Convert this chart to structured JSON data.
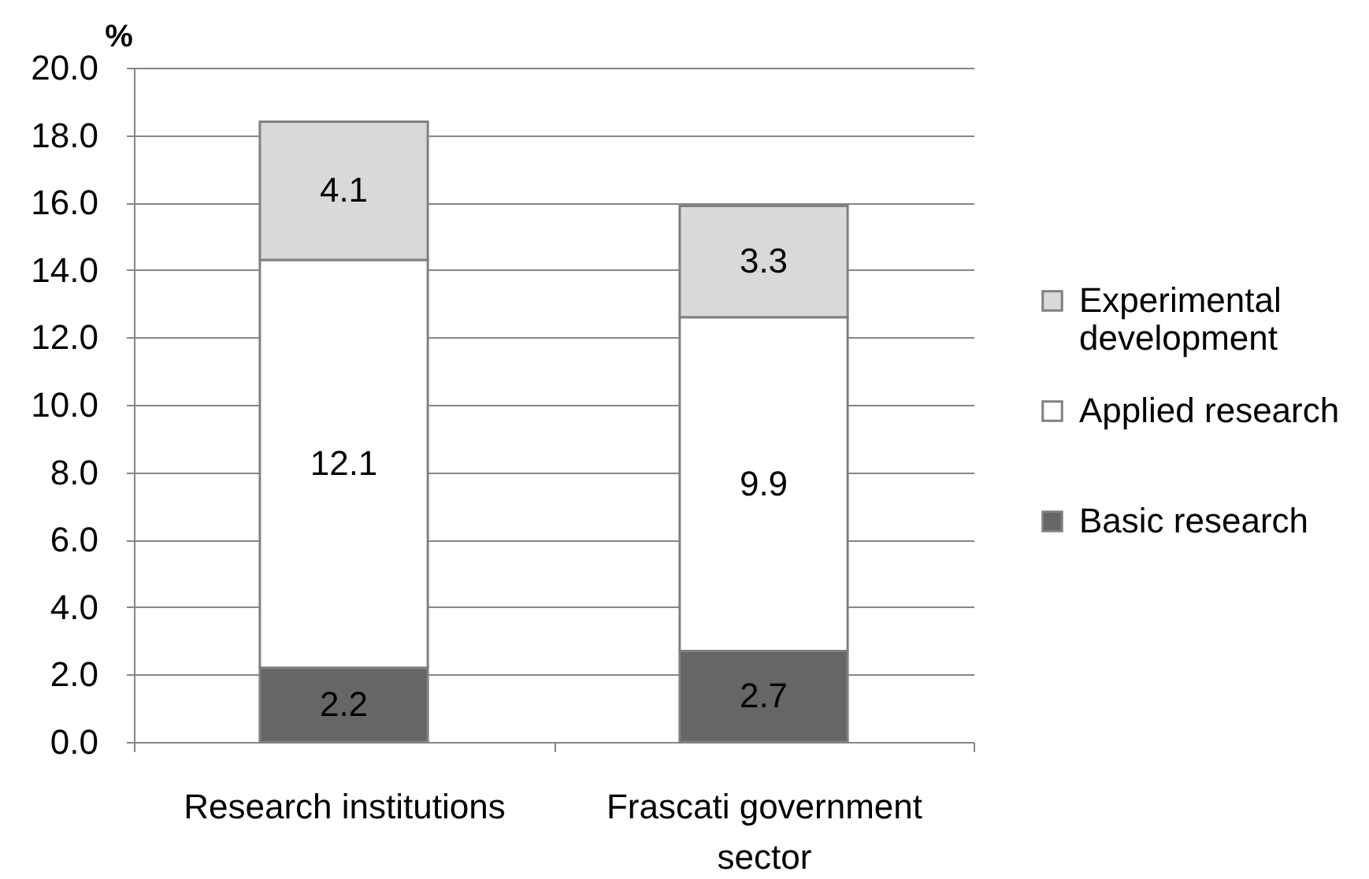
{
  "chart_data": {
    "type": "bar",
    "ylabel": "%",
    "categories": [
      "Research institutions",
      "Frascati government sector"
    ],
    "series": [
      {
        "name": "Basic research",
        "color": "#666666",
        "values": [
          2.2,
          2.7
        ]
      },
      {
        "name": "Applied research",
        "color": "#ffffff",
        "values": [
          12.1,
          9.9
        ]
      },
      {
        "name": "Experimental development",
        "color": "#d9d9d9",
        "values": [
          4.1,
          3.3
        ]
      }
    ],
    "stacked": true,
    "ylim": [
      0,
      20
    ],
    "yticks": [
      {
        "value": 0,
        "label": "0.0"
      },
      {
        "value": 2,
        "label": "2.0"
      },
      {
        "value": 4,
        "label": "4.0"
      },
      {
        "value": 6,
        "label": "6.0"
      },
      {
        "value": 8,
        "label": "8.0"
      },
      {
        "value": 10,
        "label": "10.0"
      },
      {
        "value": 12,
        "label": "12.0"
      },
      {
        "value": 14,
        "label": "14.0"
      },
      {
        "value": 16,
        "label": "16.0"
      },
      {
        "value": 18,
        "label": "18.0"
      },
      {
        "value": 20,
        "label": "20.0"
      }
    ],
    "grid": "y",
    "legend": "right",
    "data_labels": true
  }
}
